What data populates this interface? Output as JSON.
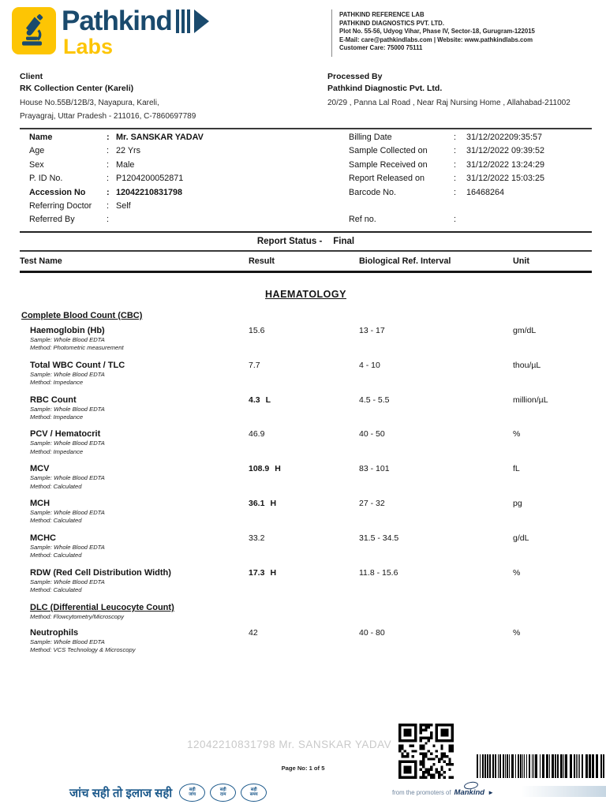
{
  "header": {
    "brand": "Pathkind",
    "brand_sub": "Labs",
    "lab_lines": [
      "PATHKIND REFERENCE LAB",
      "PATHKIND DIAGNOSTICS PVT. LTD.",
      "Plot No. 55-56, Udyog Vihar, Phase IV, Sector-18, Gurugram-122015",
      "E-Mail: care@pathkindlabs.com  |  Website: www.pathkindlabs.com",
      "Customer Care: 75000 75111"
    ]
  },
  "client": {
    "title": "Client",
    "name": "RK Collection Center (Kareli)",
    "address_lines": [
      "House No.55B/12B/3, Nayapura, Kareli,",
      "Prayagraj, Uttar Pradesh - 211016, C-7860697789"
    ]
  },
  "processed_by": {
    "title": "Processed By",
    "name": "Pathkind Diagnostic Pvt. Ltd.",
    "address_lines": [
      "20/29 , Panna Lal Road , Near Raj Nursing Home , Allahabad-211002"
    ]
  },
  "patient": {
    "separator": ":",
    "left_rows": [
      {
        "label": "Name",
        "value": "Mr. SANSKAR YADAV",
        "bold": true
      },
      {
        "label": "Age",
        "value": "22  Yrs"
      },
      {
        "label": "Sex",
        "value": "Male"
      },
      {
        "label": "P. ID No.",
        "value": "P1204200052871"
      },
      {
        "label": "Accession No",
        "value": "12042210831798",
        "bold": true
      },
      {
        "label": "Referring Doctor",
        "value": "Self"
      },
      {
        "label": "Referred By",
        "value": ""
      }
    ],
    "right_rows": [
      {
        "label": "Billing Date",
        "value": "31/12/202209:35:57"
      },
      {
        "label": "Sample Collected on",
        "value": "31/12/2022 09:39:52"
      },
      {
        "label": "Sample Received on",
        "value": "31/12/2022 13:24:29"
      },
      {
        "label": "Report Released on",
        "value": "31/12/2022 15:03:25"
      },
      {
        "label": "Barcode No.",
        "value": "16468264"
      },
      {
        "label": "",
        "value": "",
        "spacer": true
      },
      {
        "label": "Ref no.",
        "value": ""
      }
    ]
  },
  "report_status": {
    "label": "Report Status -",
    "value": "Final"
  },
  "table_headers": {
    "test_name": "Test Name",
    "result": "Result",
    "ref_interval": "Biological Ref. Interval",
    "unit": "Unit"
  },
  "section_title": "HAEMATOLOGY",
  "group_title": "Complete Blood Count (CBC)",
  "tests": [
    {
      "name": "Haemoglobin (Hb)",
      "result": "15.6",
      "flag": "",
      "ref": "13 - 17",
      "unit": "gm/dL",
      "sample": "Sample: Whole Blood EDTA",
      "method": "Method: Photometric measurement"
    },
    {
      "name": "Total WBC Count /  TLC",
      "result": "7.7",
      "flag": "",
      "ref": "4 - 10",
      "unit": "thou/µL",
      "sample": "Sample: Whole Blood EDTA",
      "method": "Method: Impedance"
    },
    {
      "name": "RBC Count",
      "result": "4.3",
      "flag": "L",
      "ref": "4.5 - 5.5",
      "unit": "million/µL",
      "sample": "Sample: Whole Blood EDTA",
      "method": "Method: Impedance"
    },
    {
      "name": "PCV / Hematocrit",
      "result": "46.9",
      "flag": "",
      "ref": "40 - 50",
      "unit": "%",
      "sample": "Sample: Whole Blood EDTA",
      "method": "Method: Impedance"
    },
    {
      "name": "MCV",
      "result": "108.9",
      "flag": "H",
      "ref": "83 - 101",
      "unit": "fL",
      "sample": "Sample: Whole Blood EDTA",
      "method": "Method: Calculated"
    },
    {
      "name": "MCH",
      "result": "36.1",
      "flag": "H",
      "ref": "27 - 32",
      "unit": "pg",
      "sample": "Sample: Whole Blood EDTA",
      "method": "Method: Calculated"
    },
    {
      "name": "MCHC",
      "result": "33.2",
      "flag": "",
      "ref": "31.5 - 34.5",
      "unit": "g/dL",
      "sample": "Sample: Whole Blood EDTA",
      "method": "Method: Calculated"
    },
    {
      "name": "RDW (Red Cell Distribution Width)",
      "result": "17.3",
      "flag": "H",
      "ref": "11.8 - 15.6",
      "unit": "%",
      "sample": "Sample: Whole Blood EDTA",
      "method": "Method: Calculated"
    },
    {
      "type": "subheader",
      "name": "DLC (Differential Leucocyte Count)",
      "method": "Method: Flowcytometry/Microscopy"
    },
    {
      "name": "Neutrophils",
      "result": "42",
      "flag": "",
      "ref": "40 - 80",
      "unit": "%",
      "sample": "Sample: Whole Blood EDTA",
      "method": "Method: VCS Technology & Microscopy"
    }
  ],
  "bottom": {
    "watermark": "12042210831798 Mr. SANSKAR YADAV",
    "page_no": "Page No: 1 of 5"
  },
  "footer": {
    "tagline_hindi": "जांच सही तो इलाज सही",
    "badges": [
      {
        "top": "सही",
        "bottom": "जांच"
      },
      {
        "top": "सही",
        "bottom": "दाम"
      },
      {
        "top": "सही",
        "bottom": "समय"
      }
    ],
    "promoter_text": "from the promoters of",
    "promoter_brand": "Mankind"
  },
  "colors": {
    "brand_navy": "#1a4a6d",
    "brand_yellow": "#fdc504",
    "footer_blue": "#1d5a8c"
  }
}
